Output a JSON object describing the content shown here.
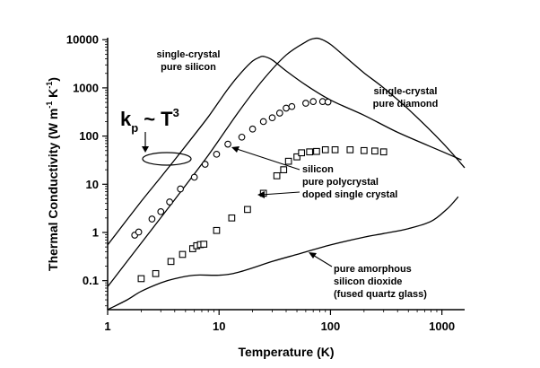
{
  "chart_data": {
    "type": "scatter",
    "title": "",
    "xlabel": "Temperature (K)",
    "ylabel": "Thermal Conductivity (W m",
    "ylabel_sup1": "-1",
    "ylabel_mid": " K",
    "ylabel_sup2": "-1",
    "ylabel_end": ")",
    "x_scale": "log",
    "y_scale": "log",
    "xlim": [
      1,
      1600
    ],
    "ylim": [
      0.025,
      11000
    ],
    "x_ticks": [
      {
        "value": 1,
        "label": "1"
      },
      {
        "value": 10,
        "label": "10"
      },
      {
        "value": 100,
        "label": "100"
      },
      {
        "value": 1000,
        "label": "1000"
      }
    ],
    "y_ticks": [
      {
        "value": 0.1,
        "label": "0.1"
      },
      {
        "value": 1,
        "label": "1"
      },
      {
        "value": 10,
        "label": "10"
      },
      {
        "value": 100,
        "label": "100"
      },
      {
        "value": 1000,
        "label": "1000"
      },
      {
        "value": 10000,
        "label": "10000"
      }
    ],
    "grid": false,
    "legend": "none",
    "series": [
      {
        "kind": "line",
        "label_lines": [
          "single-crystal",
          "pure silicon"
        ],
        "color": "#000000",
        "points": [
          [
            1,
            0.55
          ],
          [
            2,
            4.4
          ],
          [
            3,
            14
          ],
          [
            5,
            62
          ],
          [
            8,
            250
          ],
          [
            12,
            950
          ],
          [
            16,
            2150
          ],
          [
            20,
            3600
          ],
          [
            23,
            4300
          ],
          [
            25,
            4500
          ],
          [
            30,
            3800
          ],
          [
            40,
            2250
          ],
          [
            60,
            1150
          ],
          [
            100,
            560
          ],
          [
            200,
            270
          ],
          [
            400,
            120
          ],
          [
            1000,
            48
          ],
          [
            1500,
            32
          ]
        ]
      },
      {
        "kind": "line",
        "label_lines": [
          "single-crystal",
          "pure diamond"
        ],
        "color": "#000000",
        "points": [
          [
            1,
            0.075
          ],
          [
            2,
            0.6
          ],
          [
            4,
            4.8
          ],
          [
            8,
            40
          ],
          [
            15,
            320
          ],
          [
            25,
            1500
          ],
          [
            40,
            4800
          ],
          [
            60,
            9000
          ],
          [
            70,
            10500
          ],
          [
            80,
            10500
          ],
          [
            100,
            8000
          ],
          [
            150,
            3600
          ],
          [
            200,
            2050
          ],
          [
            300,
            1000
          ],
          [
            500,
            360
          ],
          [
            1000,
            75
          ],
          [
            1600,
            22
          ]
        ]
      },
      {
        "kind": "line",
        "label_lines": [
          "pure amorphous",
          "silicon dioxide",
          "(fused quartz glass)"
        ],
        "color": "#000000",
        "points": [
          [
            1,
            0.025
          ],
          [
            1.5,
            0.04
          ],
          [
            2,
            0.06
          ],
          [
            3,
            0.09
          ],
          [
            4,
            0.11
          ],
          [
            6,
            0.13
          ],
          [
            10,
            0.13
          ],
          [
            15,
            0.15
          ],
          [
            30,
            0.25
          ],
          [
            50,
            0.35
          ],
          [
            100,
            0.55
          ],
          [
            200,
            0.8
          ],
          [
            300,
            0.95
          ],
          [
            500,
            1.2
          ],
          [
            800,
            1.7
          ],
          [
            1100,
            3
          ],
          [
            1300,
            4.5
          ],
          [
            1400,
            5.5
          ]
        ]
      },
      {
        "kind": "scatter",
        "marker": "circle",
        "label_lines": [
          "silicon",
          "pure polycrystal"
        ],
        "color": "#000000",
        "points": [
          [
            1.75,
            0.88
          ],
          [
            1.9,
            1.02
          ],
          [
            2.5,
            1.9
          ],
          [
            3,
            2.7
          ],
          [
            3.6,
            4.3
          ],
          [
            4.5,
            8
          ],
          [
            6,
            14
          ],
          [
            7.5,
            26
          ],
          [
            9.5,
            42
          ],
          [
            12,
            68
          ],
          [
            16,
            95
          ],
          [
            20,
            140
          ],
          [
            25,
            200
          ],
          [
            30,
            240
          ],
          [
            35,
            300
          ],
          [
            40,
            380
          ],
          [
            45,
            410
          ],
          [
            60,
            480
          ],
          [
            70,
            520
          ],
          [
            85,
            520
          ],
          [
            95,
            510
          ]
        ]
      },
      {
        "kind": "scatter",
        "marker": "square",
        "label_lines": [
          "doped single crystal"
        ],
        "color": "#000000",
        "points": [
          [
            2,
            0.11
          ],
          [
            2.7,
            0.14
          ],
          [
            3.7,
            0.25
          ],
          [
            4.7,
            0.35
          ],
          [
            5.8,
            0.46
          ],
          [
            6.3,
            0.53
          ],
          [
            6.8,
            0.56
          ],
          [
            7.3,
            0.57
          ],
          [
            9.5,
            1.1
          ],
          [
            13,
            2
          ],
          [
            18,
            3
          ],
          [
            25,
            6.5
          ],
          [
            33,
            15
          ],
          [
            38,
            20
          ],
          [
            42,
            30
          ],
          [
            50,
            37
          ],
          [
            55,
            45
          ],
          [
            65,
            47
          ],
          [
            75,
            48
          ],
          [
            90,
            52
          ],
          [
            110,
            52
          ],
          [
            150,
            52
          ],
          [
            200,
            50
          ],
          [
            250,
            49
          ],
          [
            300,
            47
          ]
        ]
      }
    ],
    "annotations": {
      "kp_label_k": "k",
      "kp_label_sub": "p",
      "kp_label_rest": "~ T",
      "kp_label_sup": "3"
    }
  }
}
